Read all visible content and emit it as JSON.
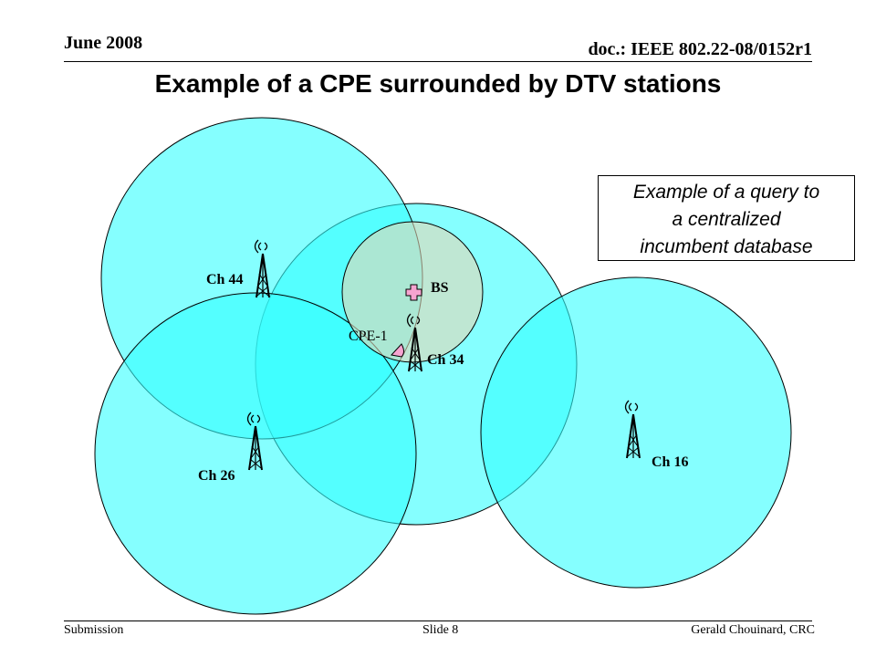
{
  "header": {
    "date": "June 2008",
    "doc": "doc.: IEEE 802.22-08/0152r1"
  },
  "title": "Example of a CPE surrounded by DTV stations",
  "callout": {
    "lines": [
      "Example of a query to",
      "a centralized",
      "incumbent database"
    ]
  },
  "labels": {
    "ch44": "Ch 44",
    "ch34": "Ch 34",
    "ch26": "Ch 26",
    "ch16": "Ch 16",
    "bs": "BS",
    "cpe": "CPE-1"
  },
  "colors": {
    "coverage": "#33FFFF",
    "bs_area": "#C8E6C0",
    "bs_marker": "#F6A4D0",
    "cpe_marker": "#F6A4D0"
  },
  "footer": {
    "left": "Submission",
    "center": "Slide 8",
    "right": "Gerald Chouinard, CRC"
  }
}
